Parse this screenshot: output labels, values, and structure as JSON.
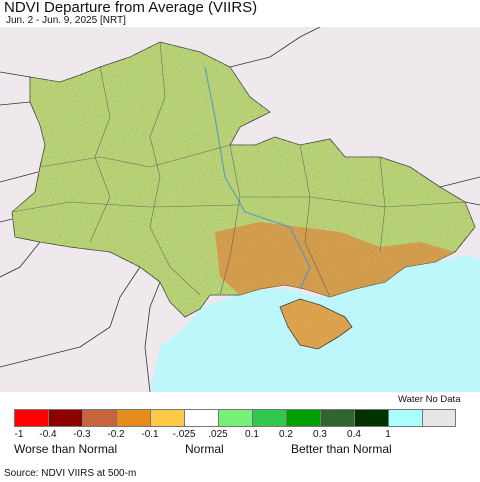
{
  "title": "NDVI Departure from Average (VIIRS)",
  "subtitle": "Jun. 2 - Jun. 9, 2025 [NRT]",
  "legend": {
    "nodata_label": "Water No Data",
    "colors": [
      "#fe0000",
      "#8c0000",
      "#c8643c",
      "#e68c1e",
      "#ffc846",
      "#ffffff",
      "#78f078",
      "#32c850",
      "#00a000",
      "#326432",
      "#003200",
      "#aaffff",
      "#e6e6e6"
    ],
    "ticks": [
      "-1",
      "-0.4",
      "-0.3",
      "-0.2",
      "-0.1",
      "-.025",
      ".025",
      "0.1",
      "0.2",
      "0.3",
      "0.4",
      "1"
    ],
    "groups": {
      "worse": "Worse than Normal",
      "normal": "Normal",
      "better": "Better than Normal"
    }
  },
  "source": "Source: NDVI VIIRS at 500-m",
  "map_colors": {
    "background": "#efe9ee",
    "sea": "#bdf7fb",
    "border": "#333333"
  }
}
